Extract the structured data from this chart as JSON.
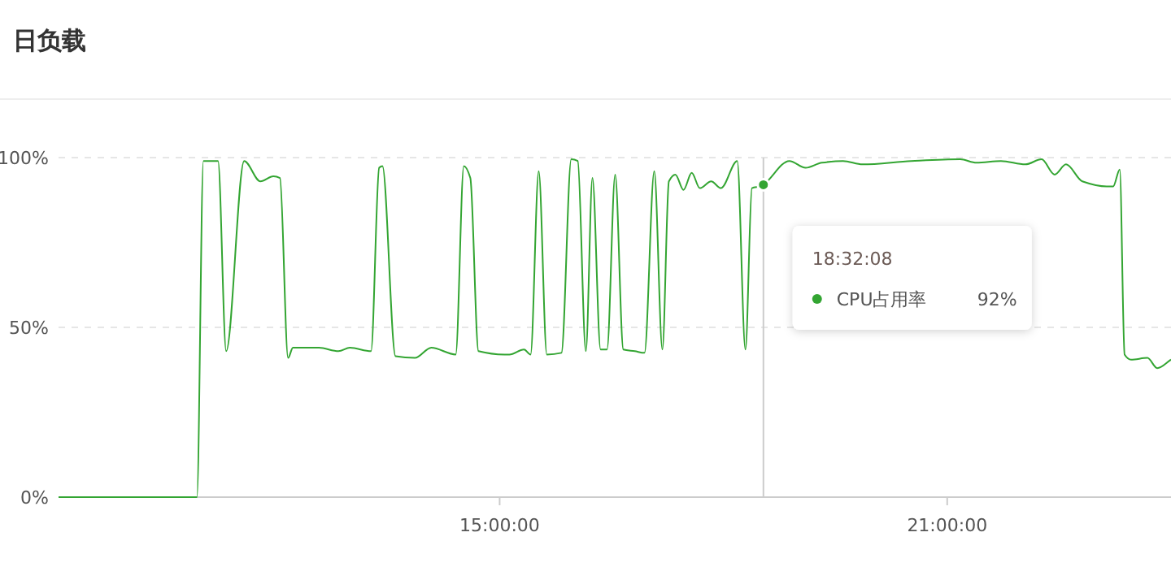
{
  "chart_data": {
    "type": "line",
    "title": "日负载",
    "x": [
      9.087,
      10.942,
      11.029,
      11.225,
      11.334,
      11.575,
      11.793,
      11.967,
      12.055,
      12.164,
      12.229,
      12.578,
      12.84,
      12.993,
      13.276,
      13.385,
      13.429,
      13.604,
      13.865,
      14.084,
      14.411,
      14.52,
      14.607,
      14.716,
      15.065,
      15.131,
      15.327,
      15.415,
      15.524,
      15.633,
      15.829,
      15.96,
      16.047,
      16.156,
      16.244,
      16.353,
      16.44,
      16.549,
      16.658,
      16.811,
      16.942,
      17.073,
      17.182,
      17.269,
      17.356,
      17.465,
      17.575,
      17.684,
      17.836,
      17.967,
      18.185,
      18.295,
      18.382,
      18.491,
      18.536,
      18.884,
      19.102,
      19.32,
      19.604,
      19.865,
      20.52,
      21.175,
      21.393,
      21.72,
      22.047,
      22.265,
      22.44,
      22.593,
      22.811,
      23.138,
      23.225,
      23.313,
      23.378,
      23.465,
      23.684,
      23.815,
      24.0
    ],
    "series": [
      {
        "name": "CPU占用率",
        "color": "#33a532",
        "values": [
          0,
          0,
          99,
          99,
          43,
          99,
          93,
          94.5,
          94,
          41,
          44,
          44,
          43,
          44,
          43,
          97,
          97.5,
          41.5,
          41,
          44,
          42,
          97.5,
          94,
          43,
          42,
          42,
          43.5,
          42,
          96,
          42,
          42.5,
          99.5,
          99,
          43,
          94,
          43.5,
          43.5,
          95,
          43.5,
          43,
          42.5,
          96,
          43.5,
          93,
          95,
          90.5,
          95.5,
          91,
          93,
          91,
          99,
          43.5,
          91,
          91.5,
          92,
          99,
          97,
          98.5,
          99,
          98,
          99,
          99.5,
          98.5,
          99,
          98,
          99.5,
          95,
          98,
          93,
          91.5,
          91.5,
          96.5,
          42,
          40.5,
          41,
          38,
          40.5
        ]
      }
    ],
    "xlim": [
      9.087,
      24.0
    ],
    "ylim": [
      0,
      100
    ],
    "xticks": [
      {
        "value": 15,
        "label": "15:00:00"
      },
      {
        "value": 21,
        "label": "21:00:00"
      }
    ],
    "yticks": [
      {
        "value": 0,
        "label": "0%"
      },
      {
        "value": 50,
        "label": "50%"
      },
      {
        "value": 100,
        "label": "100%"
      }
    ],
    "grid": "y",
    "ref_lines": [
      {
        "axis": "x",
        "value": 18.536,
        "color": "#cccccc"
      }
    ],
    "annotations": [
      "18:32:08",
      "92%"
    ]
  }
}
